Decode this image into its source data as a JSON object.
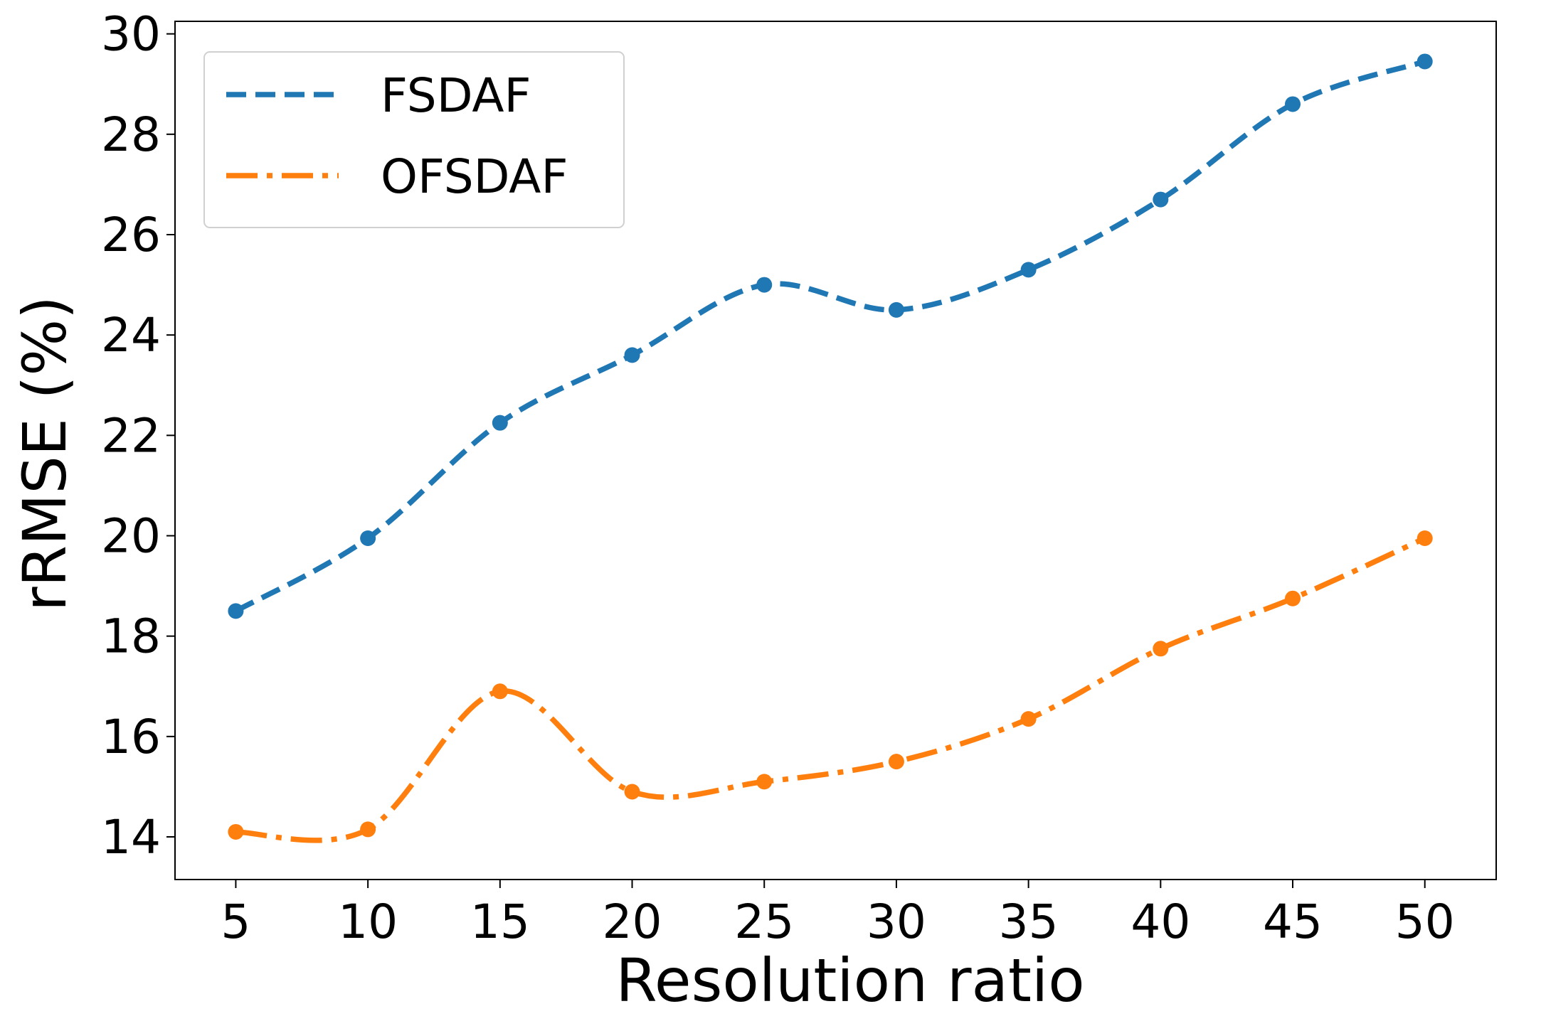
{
  "chart_data": {
    "type": "line",
    "title": "",
    "xlabel": "Resolution ratio",
    "ylabel": "rRMSE (%)",
    "x": [
      5,
      10,
      15,
      20,
      25,
      30,
      35,
      40,
      45,
      50
    ],
    "xlim": [
      2.7,
      52.7
    ],
    "ylim": [
      13.15,
      30.25
    ],
    "xticks": [
      5,
      10,
      15,
      20,
      25,
      30,
      35,
      40,
      45,
      50
    ],
    "yticks": [
      14,
      16,
      18,
      20,
      22,
      24,
      26,
      28,
      30
    ],
    "grid": false,
    "legend_position": "top-left",
    "series": [
      {
        "name": "FSDAF",
        "color": "#1f77b4",
        "line_style": "dashed",
        "marker": "circle",
        "values": [
          18.5,
          19.95,
          22.25,
          23.6,
          25.0,
          24.5,
          25.3,
          26.7,
          28.6,
          29.45
        ]
      },
      {
        "name": "OFSDAF",
        "color": "#ff7f0e",
        "line_style": "dash-dot",
        "marker": "circle",
        "values": [
          14.1,
          14.15,
          16.9,
          14.9,
          15.1,
          15.5,
          16.35,
          17.75,
          18.75,
          19.95
        ]
      }
    ]
  }
}
